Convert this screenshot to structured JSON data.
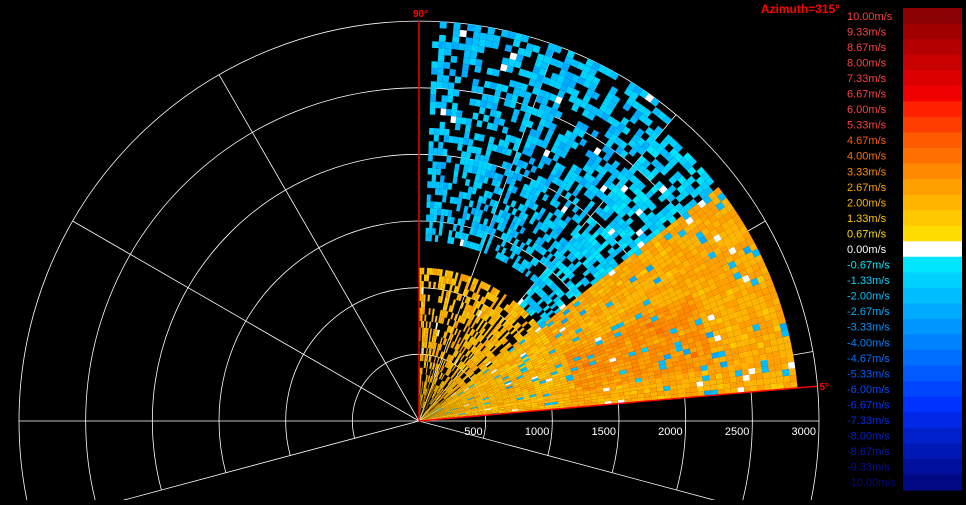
{
  "title": "Azimuth=315°",
  "colors": {
    "background": "#000000",
    "grid": "#ffffff",
    "sector_edge": "#ff0000",
    "title": "#ff0000",
    "tick_label": "#ffffff"
  },
  "chart_data": {
    "type": "heatmap",
    "projection": "polar-rhi",
    "azimuth": "315°",
    "range_unit": "m",
    "range_max": 3000,
    "range_ticks": [
      "500",
      "1000",
      "1500",
      "2000",
      "2500",
      "3000"
    ],
    "range_tick_values": [
      500,
      1000,
      1500,
      2000,
      2500,
      3000
    ],
    "angle_labels": [
      {
        "text": "90°",
        "angle": 90
      },
      {
        "text": "5°",
        "angle": 5
      }
    ],
    "sector_deg": [
      5,
      90
    ],
    "grid_ring_values": [
      500,
      1000,
      1500,
      2000,
      2500,
      3000
    ],
    "grid_spoke_angles": [
      0,
      10,
      30,
      50,
      70,
      90,
      120,
      150,
      180,
      195
    ],
    "colorbar": {
      "unit": "m/s",
      "labels": [
        "10.00m/s",
        "9.33m/s",
        "8.67m/s",
        "8.00m/s",
        "7.33m/s",
        "6.67m/s",
        "6.00m/s",
        "5.33m/s",
        "4.67m/s",
        "4.00m/s",
        "3.33m/s",
        "2.67m/s",
        "2.00m/s",
        "1.33m/s",
        "0.67m/s",
        "0.00m/s",
        "-0.67m/s",
        "-1.33m/s",
        "-2.00m/s",
        "-2.67m/s",
        "-3.33m/s",
        "-4.00m/s",
        "-4.67m/s",
        "-5.33m/s",
        "-6.00m/s",
        "-6.67m/s",
        "-7.33m/s",
        "-8.00m/s",
        "-8.67m/s",
        "-9.33m/s",
        "-10.00m/s"
      ],
      "values": [
        10.0,
        9.33,
        8.67,
        8.0,
        7.33,
        6.67,
        6.0,
        5.33,
        4.67,
        4.0,
        3.33,
        2.67,
        2.0,
        1.33,
        0.67,
        0.0,
        -0.67,
        -1.33,
        -2.0,
        -2.67,
        -3.33,
        -4.0,
        -4.67,
        -5.33,
        -6.0,
        -6.67,
        -7.33,
        -8.0,
        -8.67,
        -9.33,
        -10.0
      ],
      "colors": [
        "#8b0000",
        "#a00000",
        "#b40000",
        "#c80000",
        "#dc0000",
        "#f00000",
        "#ff2000",
        "#ff3c00",
        "#ff5a00",
        "#ff7000",
        "#ff8a00",
        "#ffa000",
        "#ffb400",
        "#ffc800",
        "#ffdc00",
        "#ffffff",
        "#00e6ff",
        "#00d2ff",
        "#00beff",
        "#00aaff",
        "#0096ff",
        "#0082ff",
        "#006eff",
        "#005aff",
        "#0046ff",
        "#0032ff",
        "#0028e6",
        "#0020cc",
        "#0018b4",
        "#00109c",
        "#000884"
      ],
      "label_colors": [
        "#ff4040",
        "#ff4040",
        "#ff4040",
        "#ff4040",
        "#ff4040",
        "#ff4040",
        "#ff4040",
        "#ff4040",
        "#ff5a00",
        "#ff7000",
        "#ff8a00",
        "#ffa000",
        "#ffb400",
        "#ffc800",
        "#ffdc00",
        "#ffffff",
        "#00e6ff",
        "#00d2ff",
        "#00beff",
        "#00aaff",
        "#0096ff",
        "#0082ff",
        "#006eff",
        "#005aff",
        "#0046ff",
        "#0032ff",
        "#0028e6",
        "#0020cc",
        "#0018b4",
        "#00109c",
        "#000884"
      ]
    },
    "bands": [
      {
        "r0": 0.0,
        "r1": 0.38,
        "a0": 5,
        "a1": 90,
        "value": 1.8,
        "note": ""
      },
      {
        "r0": 0.38,
        "r1": 0.95,
        "a0": 5,
        "a1": 38,
        "value": 2.3,
        "note": ""
      },
      {
        "r0": 0.4,
        "r1": 0.75,
        "a0": 10,
        "a1": 25,
        "value": 3.0,
        "note": ""
      },
      {
        "r0": 0.38,
        "r1": 0.95,
        "a0": 38,
        "a1": 50,
        "value": -1.3,
        "note": ""
      },
      {
        "r0": 0.45,
        "r1": 1.0,
        "a0": 50,
        "a1": 88,
        "value": -1.8,
        "note": ""
      }
    ]
  }
}
